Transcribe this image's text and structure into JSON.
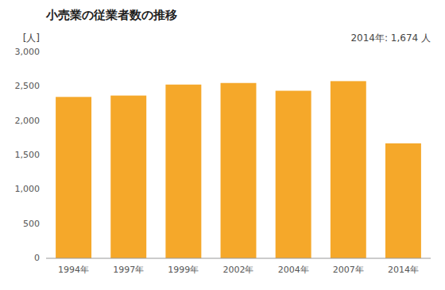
{
  "chart_data": {
    "type": "bar",
    "title": "小売業の従業者数の推移",
    "ylabel": "[人]",
    "annotation": "2014年: 1,674 人",
    "categories": [
      "1994年",
      "1997年",
      "1999年",
      "2002年",
      "2004年",
      "2007年",
      "2014年"
    ],
    "values": [
      2350,
      2370,
      2530,
      2553,
      2440,
      2580,
      1674
    ],
    "color": "#F5A82A",
    "ylim": [
      0,
      3000
    ],
    "yticks": [
      0,
      500,
      {
        "value": 1000,
        "label": "1,000"
      },
      {
        "value": 1500,
        "label": "1,500"
      },
      {
        "value": 2000,
        "label": "2,000"
      },
      {
        "value": 2500,
        "label": "2,500"
      },
      {
        "value": 3000,
        "label": "3,000"
      }
    ],
    "grid": false
  }
}
